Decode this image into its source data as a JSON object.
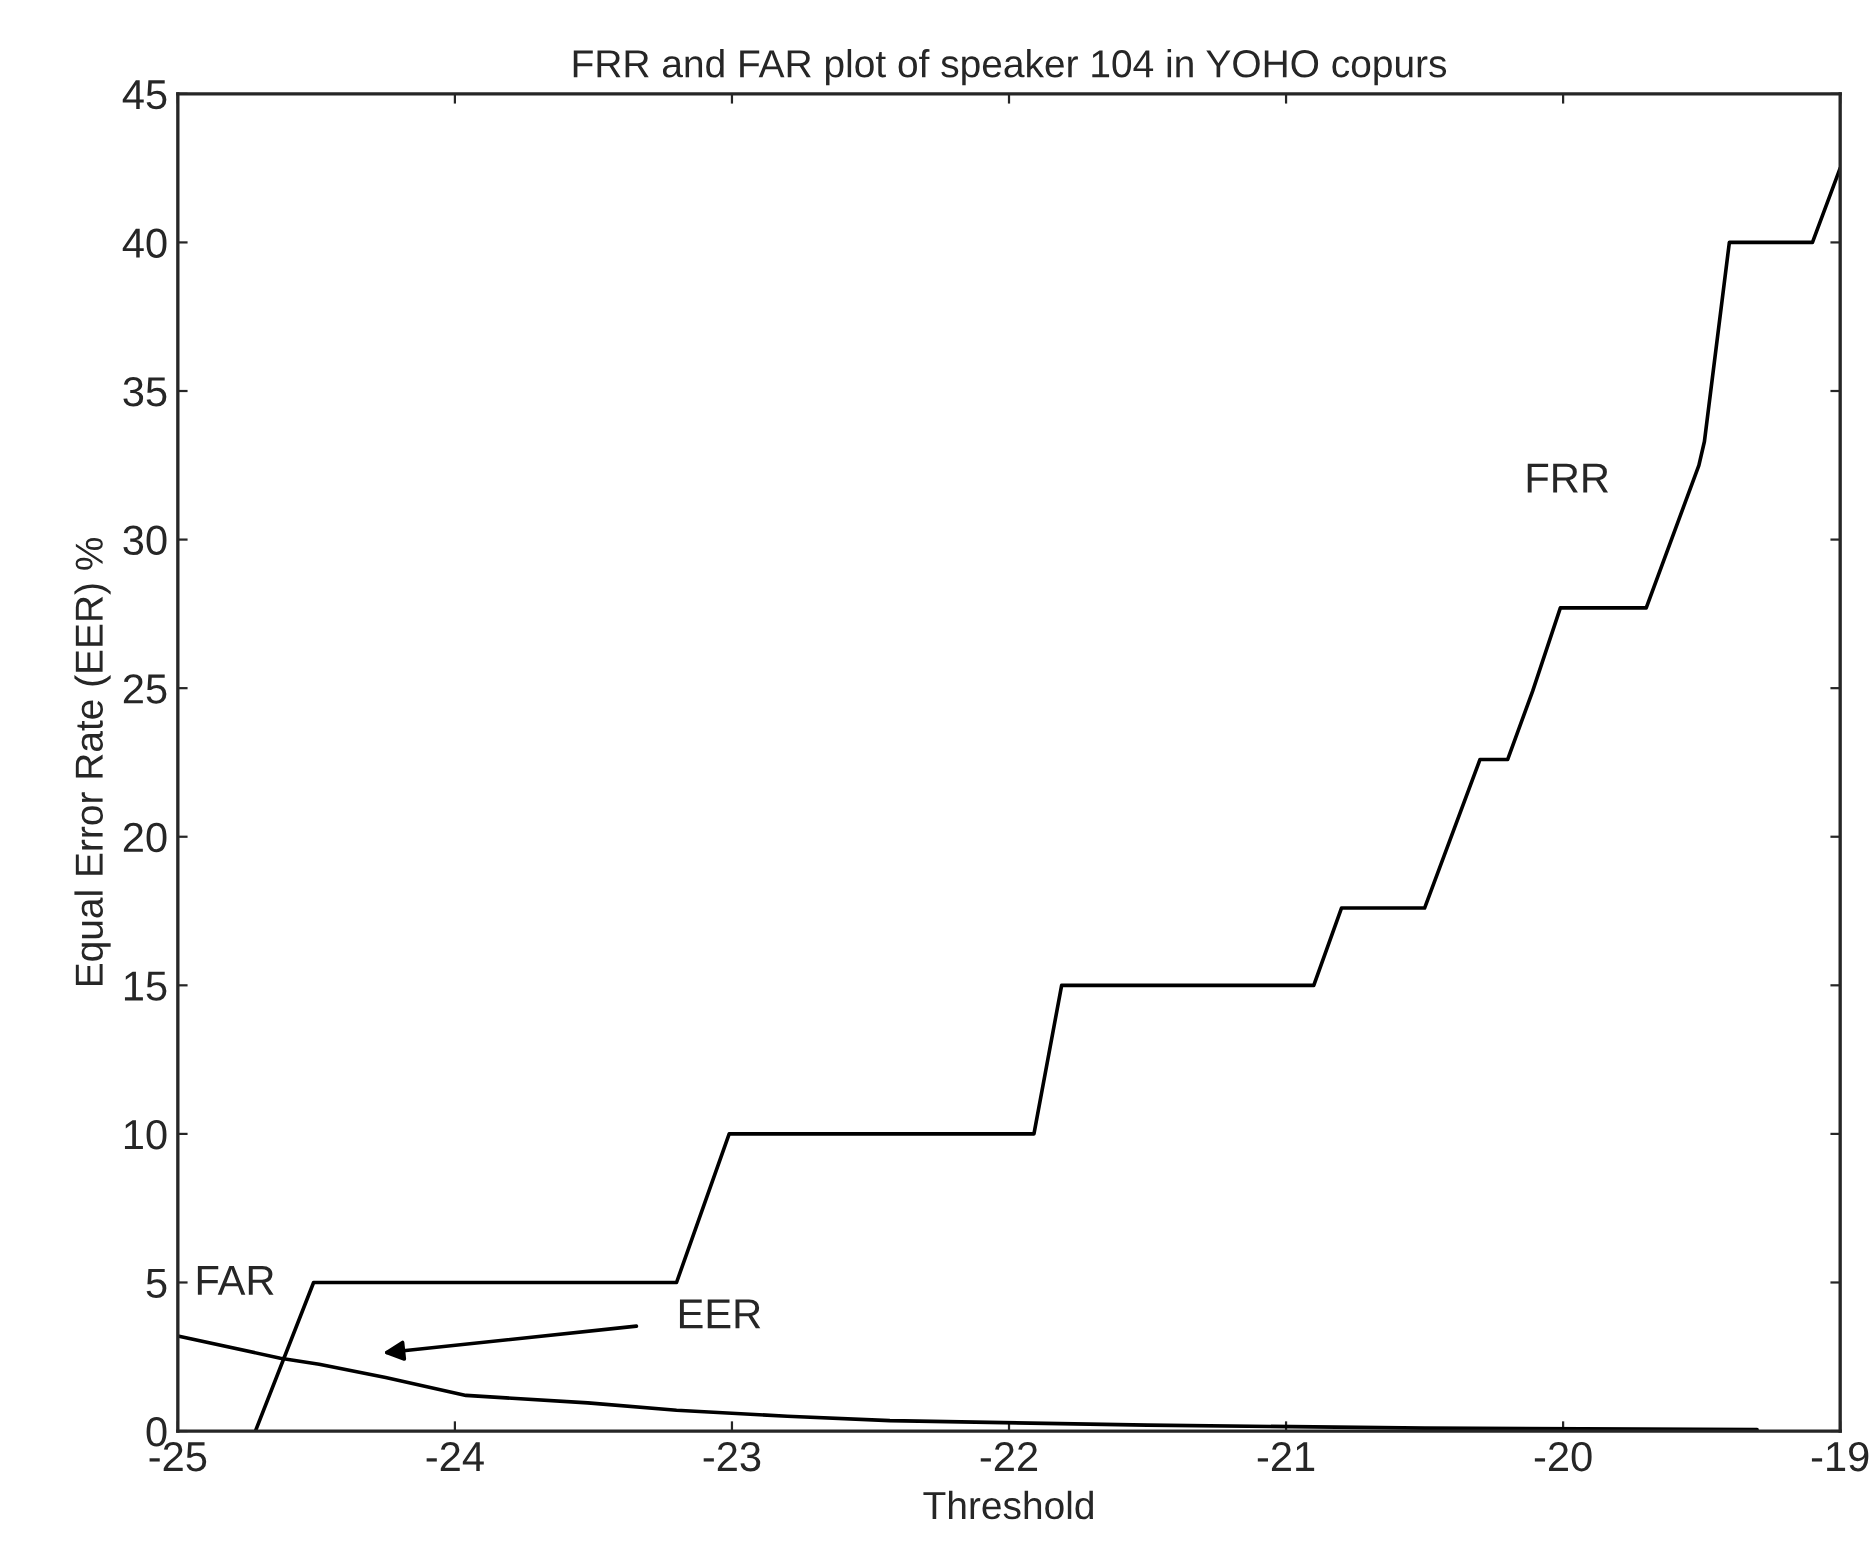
{
  "chart_data": {
    "type": "line",
    "title": "FRR and FAR plot of speaker 104 in YOHO copurs",
    "xlabel": "Threshold",
    "ylabel": "Equal Error Rate (EER) %",
    "series": [
      {
        "color": "#000000",
        "x": [
          -24.72,
          -24.51,
          -23.2,
          -23.01,
          -21.91,
          -21.81,
          -20.9,
          -20.8,
          -20.5,
          -20.3,
          -20.2,
          -20.11,
          -20.01,
          -19.7,
          -19.51,
          -19.49,
          -19.4,
          -19.1,
          -19.0
        ],
        "values": [
          0,
          5,
          5,
          10,
          10,
          15,
          15,
          17.6,
          17.6,
          22.6,
          22.6,
          24.9,
          27.7,
          27.7,
          32.5,
          33.3,
          40,
          40,
          42.5
        ]
      },
      {
        "color": "#000000",
        "x": [
          -25.0,
          -24.63,
          -24.49,
          -24.25,
          -23.96,
          -23.52,
          -23.2,
          -22.8,
          -22.43,
          -21.5,
          -20.5,
          -19.3
        ],
        "values": [
          3.2,
          2.45,
          2.25,
          1.8,
          1.2,
          0.95,
          0.7,
          0.5,
          0.35,
          0.2,
          0.1,
          0.05
        ]
      }
    ],
    "annotations": [
      "FAR",
      "EER",
      "FRR"
    ],
    "xlim": [
      -25,
      -19
    ],
    "ylim": [
      0,
      45
    ],
    "xticks": [
      -25,
      -24,
      -23,
      -22,
      -21,
      -20,
      -19
    ],
    "yticks": [
      0,
      5,
      10,
      15,
      20,
      25,
      30,
      35,
      40,
      45
    ],
    "grid": false,
    "legend": false,
    "marker": "none",
    "line_style": "solid"
  }
}
